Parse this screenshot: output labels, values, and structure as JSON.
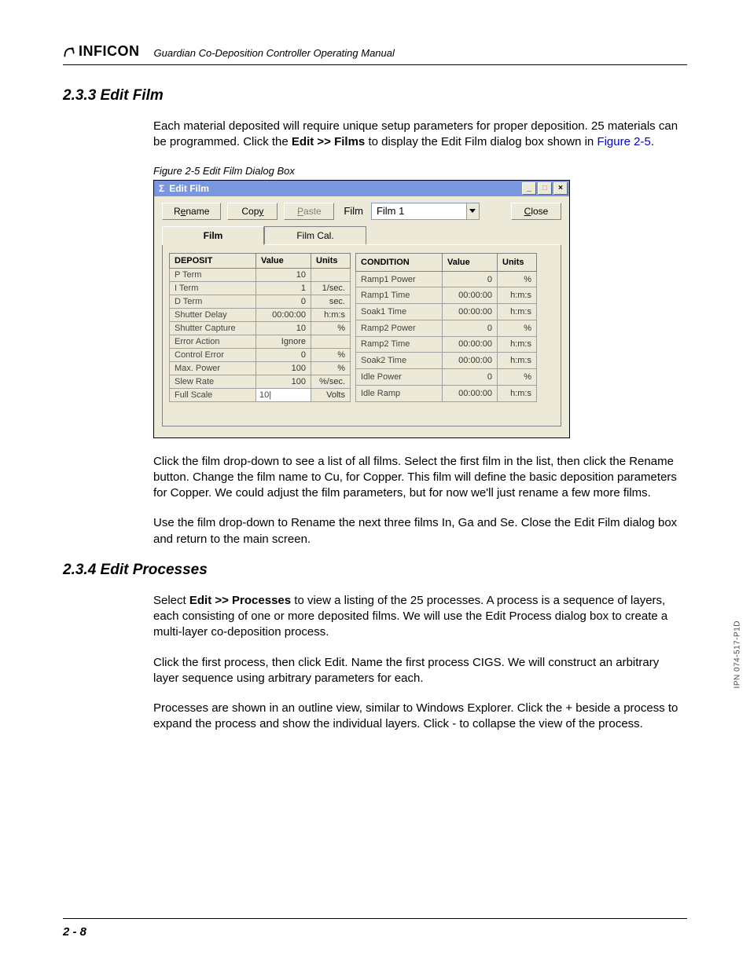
{
  "header": {
    "brand": "INFICON",
    "doc_title": "Guardian Co-Deposition Controller Operating Manual"
  },
  "section1": {
    "num_title": "2.3.3  Edit Film",
    "para1_a": "Each material deposited will require unique setup parameters for proper deposition. 25 materials can be programmed. Click the ",
    "para1_bold": "Edit >> Films",
    "para1_b": " to display the Edit Film dialog box shown in ",
    "para1_ref": "Figure 2-5",
    "para1_c": ".",
    "fig_caption": "Figure 2-5  Edit Film Dialog Box",
    "para2": "Click the film drop-down to see a list of all films. Select the first film in the list, then click the Rename button. Change the film name to Cu, for Copper. This film will define the basic deposition parameters for Copper. We could adjust the film parameters, but for now we'll just rename a few more films.",
    "para3": "Use the film drop-down to Rename the next three films In, Ga and Se. Close the Edit Film dialog box and return to the main screen."
  },
  "dialog": {
    "title": "Edit Film",
    "sigma": "Σ",
    "btn_rename_pre": "R",
    "btn_rename_u": "e",
    "btn_rename_post": "name",
    "btn_copy_pre": "Cop",
    "btn_copy_u": "y",
    "btn_copy_post": "",
    "btn_paste_pre": "",
    "btn_paste_u": "P",
    "btn_paste_post": "aste",
    "btn_close_pre": "",
    "btn_close_u": "C",
    "btn_close_post": "lose",
    "film_label": "Film",
    "film_value": "Film 1",
    "tab_film": "Film",
    "tab_filmcal": "Film Cal.",
    "left": {
      "h_param": "DEPOSIT",
      "h_value": "Value",
      "h_units": "Units",
      "rows": [
        {
          "p": "P Term",
          "v": "10",
          "u": ""
        },
        {
          "p": "I Term",
          "v": "1",
          "u": "1/sec."
        },
        {
          "p": "D Term",
          "v": "0",
          "u": "sec."
        },
        {
          "p": "Shutter Delay",
          "v": "00:00:00",
          "u": "h:m:s"
        },
        {
          "p": "Shutter Capture",
          "v": "10",
          "u": "%"
        },
        {
          "p": "Error Action",
          "v": "Ignore",
          "u": ""
        },
        {
          "p": "Control Error",
          "v": "0",
          "u": "%"
        },
        {
          "p": "Max. Power",
          "v": "100",
          "u": "%"
        },
        {
          "p": "Slew Rate",
          "v": "100",
          "u": "%/sec."
        },
        {
          "p": "Full Scale",
          "v": "10",
          "u": "Volts"
        }
      ]
    },
    "right": {
      "h_param": "CONDITION",
      "h_value": "Value",
      "h_units": "Units",
      "rows": [
        {
          "p": "Ramp1 Power",
          "v": "0",
          "u": "%"
        },
        {
          "p": "Ramp1 Time",
          "v": "00:00:00",
          "u": "h:m:s"
        },
        {
          "p": "Soak1 Time",
          "v": "00:00:00",
          "u": "h:m:s"
        },
        {
          "p": "Ramp2 Power",
          "v": "0",
          "u": "%"
        },
        {
          "p": "Ramp2 Time",
          "v": "00:00:00",
          "u": "h:m:s"
        },
        {
          "p": "Soak2 Time",
          "v": "00:00:00",
          "u": "h:m:s"
        },
        {
          "p": "Idle Power",
          "v": "0",
          "u": "%"
        },
        {
          "p": "Idle Ramp",
          "v": "00:00:00",
          "u": "h:m:s"
        }
      ]
    }
  },
  "section2": {
    "num_title": "2.3.4  Edit Processes",
    "para1_a": "Select ",
    "para1_bold": "Edit >> Processes",
    "para1_b": " to view a listing of the 25 processes. A process is a sequence of layers, each consisting of one or more deposited films. We will use the Edit Process dialog box to create a multi-layer co-deposition process.",
    "para2": "Click the first process, then click Edit. Name the first process CIGS. We will construct an arbitrary layer sequence using arbitrary parameters for each.",
    "para3": "Processes are shown in an outline view, similar to Windows Explorer. Click the + beside a process to expand the process and show the individual layers. Click - to collapse the view of the process."
  },
  "footer": {
    "page": "2 - 8"
  },
  "side_ipn": "IPN 074-517-P1D"
}
